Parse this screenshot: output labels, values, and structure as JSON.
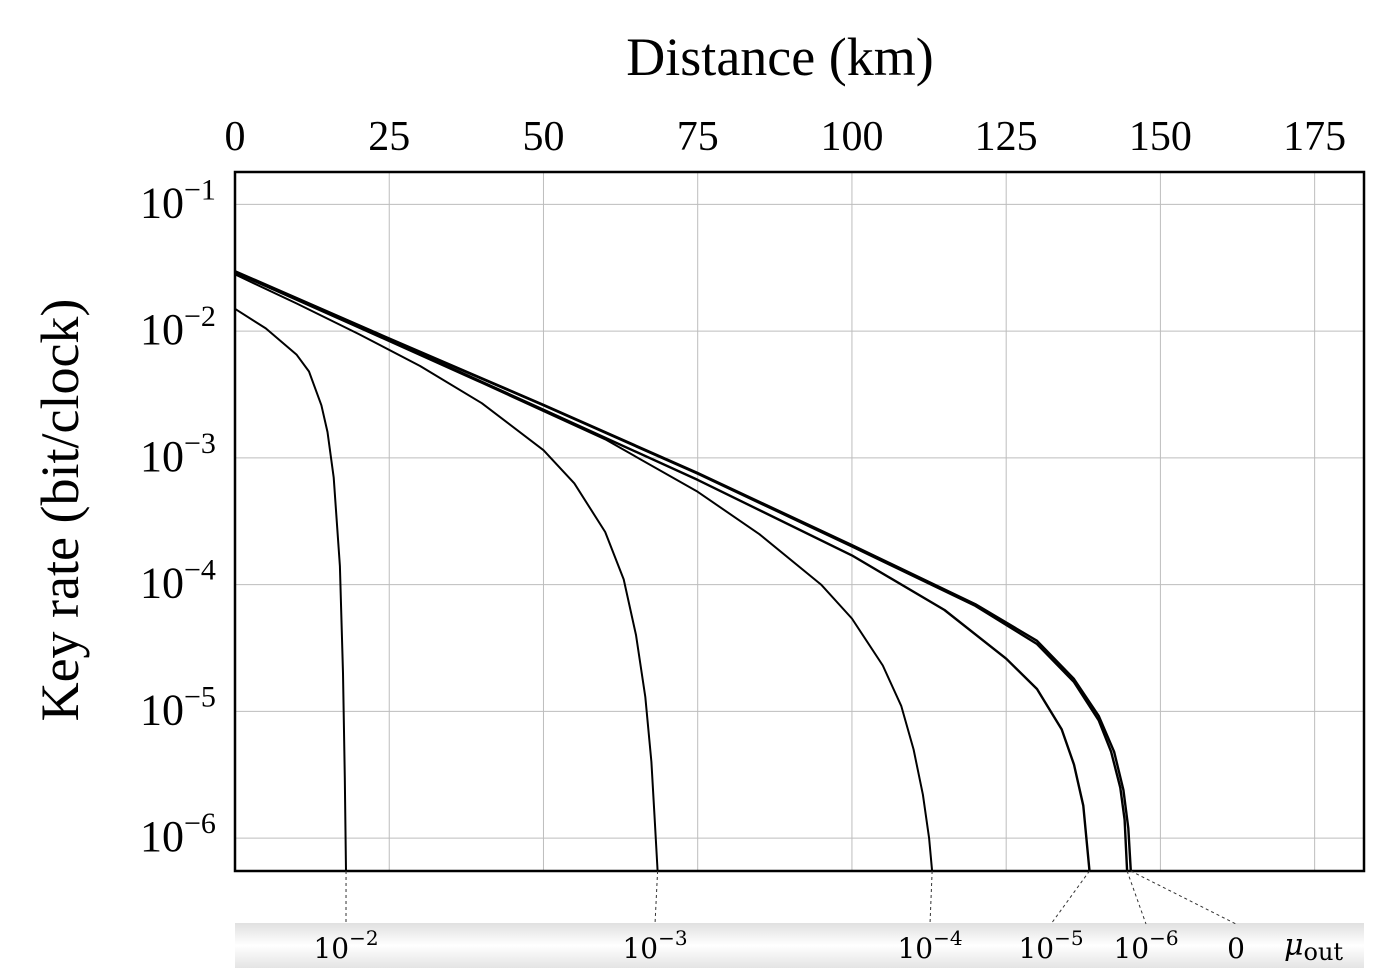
{
  "chart_data": {
    "type": "line",
    "title": "",
    "xlabel": "Distance (km)",
    "ylabel": "Key rate (bit/clock)",
    "x_axis_position": "top",
    "y_scale": "log",
    "xlim": [
      0,
      183
    ],
    "ylim": [
      5.5e-07,
      0.18
    ],
    "grid": true,
    "x_ticks": [
      {
        "value": 0,
        "label": "0"
      },
      {
        "value": 25,
        "label": "25"
      },
      {
        "value": 50,
        "label": "50"
      },
      {
        "value": 75,
        "label": "75"
      },
      {
        "value": 100,
        "label": "100"
      },
      {
        "value": 125,
        "label": "125"
      },
      {
        "value": 150,
        "label": "150"
      },
      {
        "value": 175,
        "label": "175"
      }
    ],
    "y_ticks": [
      {
        "value": 0.1,
        "base": "10",
        "exp": "−1"
      },
      {
        "value": 0.01,
        "base": "10",
        "exp": "−2"
      },
      {
        "value": 0.001,
        "base": "10",
        "exp": "−3"
      },
      {
        "value": 0.0001,
        "base": "10",
        "exp": "−4"
      },
      {
        "value": 1e-05,
        "base": "10",
        "exp": "−5"
      },
      {
        "value": 1e-06,
        "base": "10",
        "exp": "−6"
      }
    ],
    "mu_axis": {
      "label_base": "μ",
      "label_sub": "out",
      "entries": [
        {
          "label_base": "10",
          "label_exp": "−2",
          "cutoff_km": 18
        },
        {
          "label_base": "10",
          "label_exp": "−3",
          "cutoff_km": 68.5
        },
        {
          "label_base": "10",
          "label_exp": "−4",
          "cutoff_km": 113
        },
        {
          "label_base": "10",
          "label_exp": "−5",
          "cutoff_km": 138.5
        },
        {
          "label_base": "10",
          "label_exp": "−6",
          "cutoff_km": 144.6
        },
        {
          "label_base": "0",
          "label_exp": "",
          "cutoff_km": 145.2
        }
      ]
    },
    "series": [
      {
        "values": [
          [
            0,
            0.015
          ],
          [
            5,
            0.0105
          ],
          [
            10,
            0.0065
          ],
          [
            12,
            0.0048
          ],
          [
            14,
            0.0026
          ],
          [
            15,
            0.0016
          ],
          [
            16,
            0.0007
          ],
          [
            17,
            0.00014
          ],
          [
            17.5,
            2e-05
          ],
          [
            17.8,
            3e-06
          ],
          [
            18,
            5.5e-07
          ]
        ]
      },
      {
        "values": [
          [
            0,
            0.028
          ],
          [
            10,
            0.0165
          ],
          [
            20,
            0.0095
          ],
          [
            30,
            0.0053
          ],
          [
            40,
            0.0027
          ],
          [
            50,
            0.00115
          ],
          [
            55,
            0.00063
          ],
          [
            60,
            0.00026
          ],
          [
            63,
            0.00011
          ],
          [
            65,
            4e-05
          ],
          [
            66.5,
            1.3e-05
          ],
          [
            67.5,
            4e-06
          ],
          [
            68,
            1.5e-06
          ],
          [
            68.5,
            5.5e-07
          ]
        ]
      },
      {
        "values": [
          [
            0,
            0.029
          ],
          [
            20,
            0.0107
          ],
          [
            40,
            0.0039
          ],
          [
            60,
            0.0014
          ],
          [
            75,
            0.00054
          ],
          [
            85,
            0.00025
          ],
          [
            95,
            0.0001
          ],
          [
            100,
            5.4e-05
          ],
          [
            105,
            2.3e-05
          ],
          [
            108,
            1.1e-05
          ],
          [
            110,
            5e-06
          ],
          [
            111.5,
            2.2e-06
          ],
          [
            112.5,
            1e-06
          ],
          [
            113,
            5.5e-07
          ]
        ]
      },
      {
        "values": [
          [
            0,
            0.029
          ],
          [
            25,
            0.0085
          ],
          [
            50,
            0.0024
          ],
          [
            75,
            0.00067
          ],
          [
            100,
            0.00017
          ],
          [
            115,
            6.3e-05
          ],
          [
            125,
            2.6e-05
          ],
          [
            130,
            1.5e-05
          ],
          [
            134,
            7.2e-06
          ],
          [
            136,
            3.8e-06
          ],
          [
            137.5,
            1.8e-06
          ],
          [
            138.5,
            5.5e-07
          ]
        ]
      },
      {
        "values": [
          [
            0,
            0.0295
          ],
          [
            25,
            0.0087
          ],
          [
            50,
            0.0026
          ],
          [
            75,
            0.00075
          ],
          [
            100,
            0.0002
          ],
          [
            120,
            6.8e-05
          ],
          [
            130,
            3.4e-05
          ],
          [
            136,
            1.7e-05
          ],
          [
            140,
            8.5e-06
          ],
          [
            142,
            4.8e-06
          ],
          [
            143.5,
            2.5e-06
          ],
          [
            144.2,
            1.4e-06
          ],
          [
            144.6,
            5.5e-07
          ]
        ]
      },
      {
        "values": [
          [
            0,
            0.0297
          ],
          [
            25,
            0.00875
          ],
          [
            50,
            0.00262
          ],
          [
            75,
            0.00076
          ],
          [
            100,
            0.000205
          ],
          [
            120,
            7e-05
          ],
          [
            130,
            3.6e-05
          ],
          [
            136,
            1.8e-05
          ],
          [
            140,
            9.2e-06
          ],
          [
            142.5,
            4.8e-06
          ],
          [
            144,
            2.4e-06
          ],
          [
            144.8,
            1.2e-06
          ],
          [
            145.2,
            5.5e-07
          ]
        ]
      }
    ]
  }
}
